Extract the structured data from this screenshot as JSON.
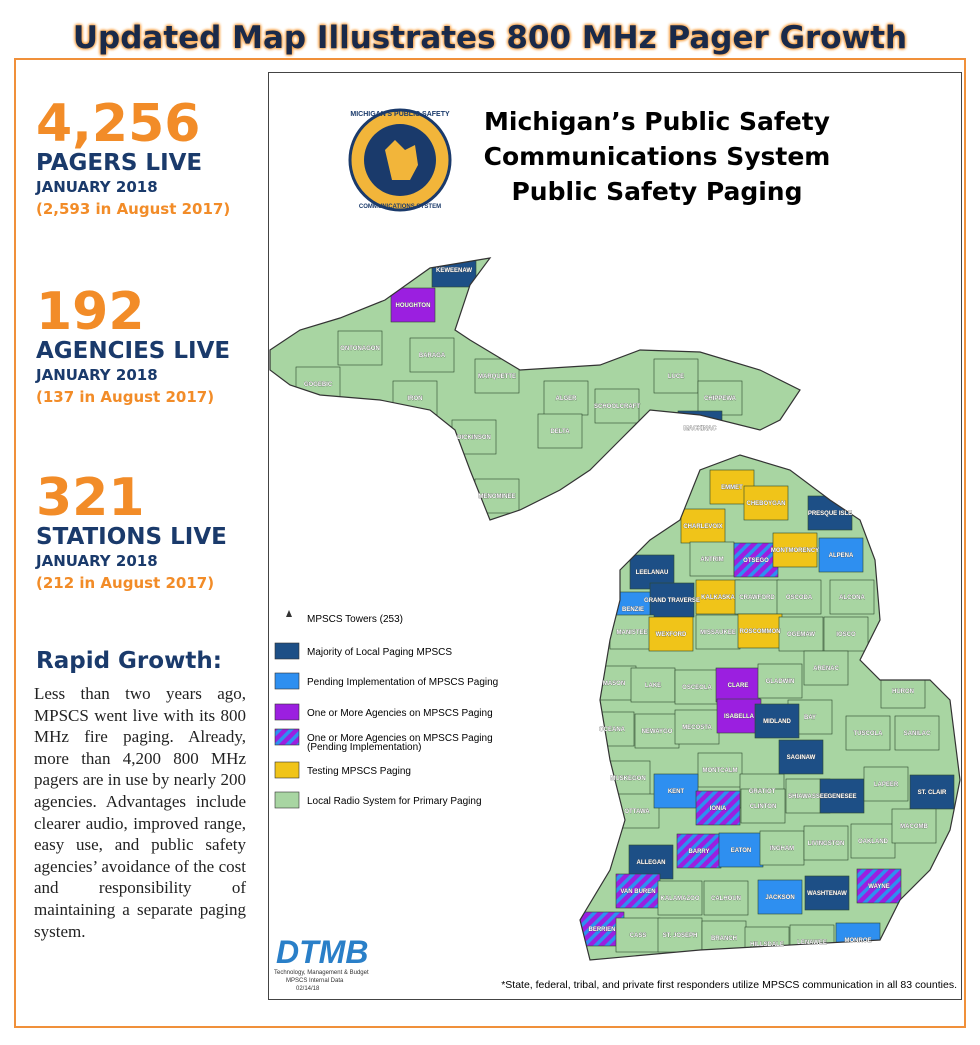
{
  "header": {
    "title": "Updated Map Illustrates 800 MHz Pager Growth"
  },
  "stats": [
    {
      "number": "4,256",
      "label": "PAGERS LIVE",
      "date": "JANUARY 2018",
      "comparison": "(2,593 in August 2017)"
    },
    {
      "number": "192",
      "label": "AGENCIES LIVE",
      "date": "JANUARY 2018",
      "comparison": "(137 in August 2017)"
    },
    {
      "number": "321",
      "label": "STATIONS LIVE",
      "date": "JANUARY 2018",
      "comparison": "(212 in August 2017)"
    }
  ],
  "article": {
    "heading": "Rapid Growth:",
    "body": "Less than two years ago, MPSCS went live with its 800 MHz fire paging. Already, more than 4,200 800 MHz pagers are in use by nearly 200 agencies. Advantages include clearer audio, improved range, easy use, and public safety agencies’ avoidance of the cost and responsibility of maintaining a separate paging system."
  },
  "map": {
    "title_lines": [
      "Michigan’s Public Safety",
      "Communications System",
      "Public Safety Paging"
    ],
    "seal": [
      "MICHIGAN'S PUBLIC SAFETY",
      "COMMUNICATIONS SYSTEM"
    ],
    "legend": [
      "MPSCS Towers (253)",
      "Majority of Local Paging MPSCS",
      "Pending Implementation of MPSCS Paging",
      "One or More Agencies on MPSCS Paging",
      "One or More Agencies on MPSCS Paging",
      "(Pending Implementation)",
      "Testing MPSCS Paging",
      "Local Radio System for Primary Paging"
    ],
    "counties": [
      "KEWEENAW",
      "HOUGHTON",
      "ONTONAGON",
      "BARAGA",
      "GOGEBIC",
      "MARQUETTE",
      "IRON",
      "ALGER",
      "LUCE",
      "CHIPPEWA",
      "SCHOOLCRAFT",
      "DICKINSON",
      "DELTA",
      "MACKINAC",
      "MENOMINEE",
      "EMMET",
      "CHEBOYGAN",
      "PRESQUE ISLE",
      "CHARLEVOIX",
      "ANTRIM",
      "OTSEGO",
      "MONTMORENCY",
      "ALPENA",
      "LEELANAU",
      "BENZIE",
      "GRAND TRAVERSE",
      "KALKASKA",
      "CRAWFORD",
      "OSCODA",
      "ALCONA",
      "MANISTEE",
      "WEXFORD",
      "MISSAUKEE",
      "ROSCOMMON",
      "OGEMAW",
      "IOSCO",
      "ARENAC",
      "MASON",
      "LAKE",
      "OSCEOLA",
      "CLARE",
      "GLADWIN",
      "HURON",
      "BAY",
      "OCEANA",
      "NEWAYGO",
      "MECOSTA",
      "ISABELLA",
      "MIDLAND",
      "TUSCOLA",
      "SANILAC",
      "MUSKEGON",
      "MONTCALM",
      "GRATIOT",
      "SAGINAW",
      "OTTAWA",
      "KENT",
      "IONIA",
      "CLINTON",
      "SHIAWASSEE",
      "GENESEE",
      "LAPEER",
      "ST. CLAIR",
      "ALLEGAN",
      "BARRY",
      "EATON",
      "INGHAM",
      "LIVINGSTON",
      "OAKLAND",
      "MACOMB",
      "VAN BUREN",
      "KALAMAZOO",
      "CALHOUN",
      "JACKSON",
      "WASHTENAW",
      "WAYNE",
      "BERRIEN",
      "CASS",
      "ST. JOSEPH",
      "BRANCH",
      "HILLSDALE",
      "LENAWEE",
      "MONROE"
    ],
    "logo": [
      "DTMB",
      "Technology, Management & Budget",
      "MPSCS Internal Data",
      "02/14/18"
    ],
    "footnote": "*State, federal, tribal, and private first responders utilize MPSCS communication in all 83 counties."
  }
}
